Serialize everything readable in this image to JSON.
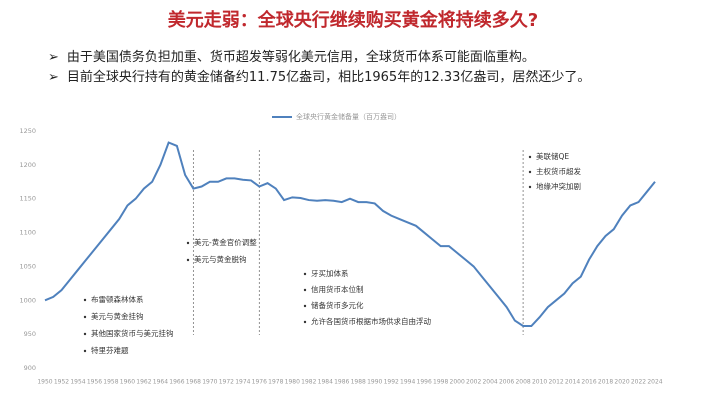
{
  "header": {
    "title": "美元走弱：全球央行继续购买黄金将持续多久?"
  },
  "bullets": [
    "由于美国债务负担加重、货币超发等弱化美元信用，全球货币体系可能面临重构。",
    "目前全球央行持有的黄金储备约11.75亿盎司，相比1965年的12.33亿盎司，居然还少了。"
  ],
  "chart_data": {
    "type": "line",
    "x": [
      1950,
      1951,
      1952,
      1953,
      1954,
      1955,
      1956,
      1957,
      1958,
      1959,
      1960,
      1961,
      1962,
      1963,
      1964,
      1965,
      1966,
      1967,
      1968,
      1969,
      1970,
      1971,
      1972,
      1973,
      1974,
      1975,
      1976,
      1977,
      1978,
      1979,
      1980,
      1981,
      1982,
      1983,
      1984,
      1985,
      1986,
      1987,
      1988,
      1989,
      1990,
      1991,
      1992,
      1993,
      1994,
      1995,
      1996,
      1997,
      1998,
      1999,
      2000,
      2001,
      2002,
      2003,
      2004,
      2005,
      2006,
      2007,
      2008,
      2009,
      2010,
      2011,
      2012,
      2013,
      2014,
      2015,
      2016,
      2017,
      2018,
      2019,
      2020,
      2021,
      2022,
      2023,
      2024
    ],
    "series": [
      {
        "name": "全球央行黄金储备量（百万盎司）",
        "color": "#4f81bd",
        "values": [
          1000,
          1005,
          1015,
          1030,
          1045,
          1060,
          1075,
          1090,
          1105,
          1120,
          1140,
          1150,
          1165,
          1175,
          1200,
          1233,
          1228,
          1185,
          1165,
          1168,
          1175,
          1175,
          1180,
          1180,
          1178,
          1177,
          1168,
          1173,
          1165,
          1148,
          1152,
          1151,
          1148,
          1147,
          1148,
          1147,
          1145,
          1150,
          1145,
          1145,
          1143,
          1132,
          1125,
          1120,
          1115,
          1110,
          1100,
          1090,
          1080,
          1080,
          1070,
          1060,
          1050,
          1035,
          1020,
          1005,
          990,
          970,
          962,
          962,
          975,
          990,
          1000,
          1010,
          1025,
          1035,
          1060,
          1080,
          1095,
          1105,
          1125,
          1140,
          1145,
          1160,
          1175
        ]
      }
    ],
    "xlim": [
      1950,
      2024
    ],
    "xticks": [
      1950,
      1952,
      1954,
      1956,
      1958,
      1960,
      1962,
      1964,
      1966,
      1968,
      1970,
      1972,
      1974,
      1976,
      1978,
      1980,
      1982,
      1984,
      1986,
      1988,
      1990,
      1992,
      1994,
      1996,
      1998,
      2000,
      2002,
      2004,
      2006,
      2008,
      2010,
      2012,
      2014,
      2016,
      2018,
      2020,
      2022,
      2024
    ],
    "ylim": [
      900,
      1250
    ],
    "yticks": [
      900,
      950,
      1000,
      1050,
      1100,
      1150,
      1200,
      1250
    ],
    "grid": false,
    "event_years": [
      1968,
      1976,
      2008
    ],
    "annotations": [
      [
        "布雷顿森林体系",
        "美元与黄金挂钩",
        "其他国家货币与美元挂钩",
        "特里芬难题"
      ],
      [
        "美元-黄金官价调整",
        "美元与黄金脱钩"
      ],
      [
        "牙买加体系",
        "信用货币本位制",
        "储备货币多元化",
        "允许各国货币根据市场供求自由浮动"
      ],
      [
        "美联储QE",
        "主权货币超发",
        "地缘冲突加剧"
      ]
    ]
  }
}
